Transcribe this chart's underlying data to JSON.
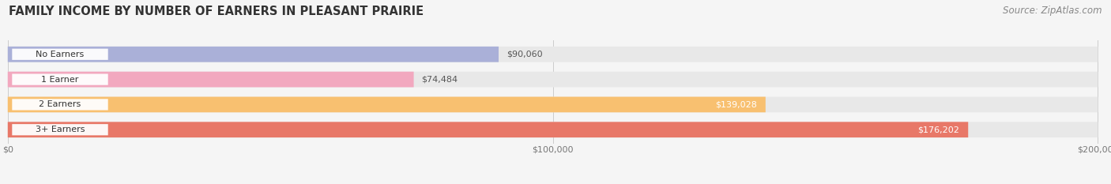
{
  "title": "FAMILY INCOME BY NUMBER OF EARNERS IN PLEASANT PRAIRIE",
  "source": "Source: ZipAtlas.com",
  "categories": [
    "No Earners",
    "1 Earner",
    "2 Earners",
    "3+ Earners"
  ],
  "values": [
    90060,
    74484,
    139028,
    176202
  ],
  "bar_colors": [
    "#aab0d8",
    "#f2a8bf",
    "#f8c070",
    "#e87868"
  ],
  "value_label_colors": [
    "#555555",
    "#555555",
    "#ffffff",
    "#ffffff"
  ],
  "bg_track_color": "#e8e8e8",
  "fig_bg_color": "#f5f5f5",
  "xlim": [
    0,
    200000
  ],
  "xticks": [
    0,
    100000,
    200000
  ],
  "xtick_labels": [
    "$0",
    "$100,000",
    "$200,000"
  ],
  "title_fontsize": 10.5,
  "source_fontsize": 8.5,
  "bar_label_fontsize": 8,
  "value_fontsize": 8
}
